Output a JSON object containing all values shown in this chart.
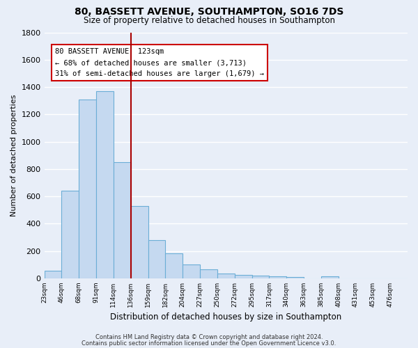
{
  "title": "80, BASSETT AVENUE, SOUTHAMPTON, SO16 7DS",
  "subtitle": "Size of property relative to detached houses in Southampton",
  "xlabel": "Distribution of detached houses by size in Southampton",
  "ylabel": "Number of detached properties",
  "bar_labels": [
    "23sqm",
    "46sqm",
    "68sqm",
    "91sqm",
    "114sqm",
    "136sqm",
    "159sqm",
    "182sqm",
    "204sqm",
    "227sqm",
    "250sqm",
    "272sqm",
    "295sqm",
    "317sqm",
    "340sqm",
    "363sqm",
    "385sqm",
    "408sqm",
    "431sqm",
    "453sqm",
    "476sqm"
  ],
  "bar_values": [
    55,
    640,
    1310,
    1370,
    850,
    530,
    278,
    185,
    103,
    65,
    35,
    25,
    22,
    15,
    12,
    0,
    15,
    0,
    0,
    0,
    0
  ],
  "bar_color": "#c5d9f0",
  "bar_edge_color": "#6baed6",
  "ylim": [
    0,
    1800
  ],
  "yticks": [
    0,
    200,
    400,
    600,
    800,
    1000,
    1200,
    1400,
    1600,
    1800
  ],
  "property_line_color": "#aa0000",
  "annotation_title": "80 BASSETT AVENUE: 123sqm",
  "annotation_line1": "← 68% of detached houses are smaller (3,713)",
  "annotation_line2": "31% of semi-detached houses are larger (1,679) →",
  "annotation_box_color": "#ffffff",
  "annotation_box_edge": "#cc0000",
  "footer_line1": "Contains HM Land Registry data © Crown copyright and database right 2024.",
  "footer_line2": "Contains public sector information licensed under the Open Government Licence v3.0.",
  "background_color": "#e8eef8",
  "plot_background_color": "#e8eef8",
  "grid_color": "#ffffff",
  "n_bins": 21,
  "bin_width": 1
}
